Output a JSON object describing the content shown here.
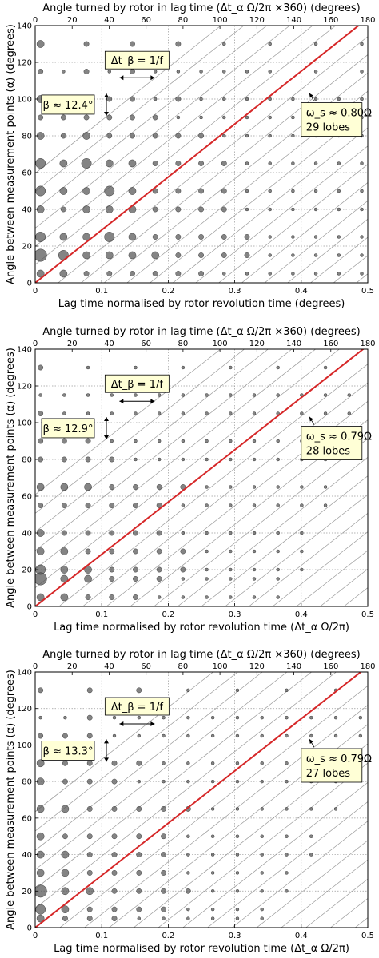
{
  "style": {
    "fit_line_color": "#d62728",
    "diagonal_color": "#9a9a9a",
    "marker_color": "#555555",
    "annotation_fill": "#ffffd6"
  },
  "chart_data": [
    {
      "type": "scatter",
      "top_xlabel": "Angle turned by rotor in lag time (Δt_α Ω/2π ×360) (degrees)",
      "xlabel": "Lag time normalised by rotor revolution time (degrees)",
      "ylabel": "Angle between measurement points (α) (degrees)",
      "xlim": [
        0,
        0.5
      ],
      "ylim": [
        0,
        140
      ],
      "top_xlim": [
        0,
        180
      ],
      "x_ticks": [
        0,
        0.1,
        0.2,
        0.3,
        0.4,
        0.5
      ],
      "y_ticks": [
        0,
        20,
        40,
        60,
        80,
        100,
        120,
        140
      ],
      "top_ticks": [
        0,
        20,
        40,
        60,
        80,
        100,
        120,
        140,
        160,
        180
      ],
      "grid": true,
      "fit_line": {
        "x": [
          0,
          0.5
        ],
        "y": [
          0,
          144
        ]
      },
      "diagonal_spacing_x": 0.0345,
      "annotations": {
        "beta": "β ≈ 12.4°",
        "delta": "Δt_β = 1/f",
        "omega": "ω_s ≈ 0.80Ω",
        "lobes": "29 lobes"
      },
      "dot_rows": [
        {
          "y": 130,
          "sizes": [
            3,
            0,
            2,
            0,
            2,
            0,
            2,
            0,
            1,
            0,
            1,
            0,
            1,
            0,
            1,
            0,
            1,
            1,
            1,
            0,
            1
          ]
        },
        {
          "y": 115,
          "sizes": [
            2,
            1,
            2,
            1,
            2,
            1,
            1,
            1,
            1,
            1,
            1,
            0,
            1,
            0,
            1,
            1,
            1,
            1,
            1
          ]
        },
        {
          "y": 100,
          "sizes": [
            3,
            2,
            2,
            2,
            2,
            1,
            2,
            1,
            1,
            1,
            1,
            1,
            1,
            1,
            1,
            1,
            1,
            1
          ]
        },
        {
          "y": 90,
          "sizes": [
            2,
            2,
            2,
            2,
            2,
            2,
            1,
            1,
            1,
            1,
            1,
            1,
            1,
            1,
            1,
            1,
            1,
            1
          ]
        },
        {
          "y": 80,
          "sizes": [
            3,
            2,
            3,
            2,
            2,
            2,
            2,
            2,
            1,
            1,
            1,
            1,
            1,
            1,
            1,
            1,
            1
          ]
        },
        {
          "y": 65,
          "sizes": [
            4,
            3,
            4,
            3,
            3,
            2,
            2,
            2,
            2,
            1,
            1,
            1,
            1,
            1,
            1,
            1,
            1
          ]
        },
        {
          "y": 50,
          "sizes": [
            4,
            3,
            3,
            4,
            3,
            2,
            2,
            2,
            2,
            1,
            1,
            1,
            1,
            1,
            1,
            1
          ]
        },
        {
          "y": 40,
          "sizes": [
            3,
            2,
            3,
            3,
            3,
            2,
            2,
            2,
            2,
            1,
            1,
            1,
            1,
            1,
            1,
            1
          ]
        },
        {
          "y": 25,
          "sizes": [
            4,
            3,
            3,
            4,
            3,
            2,
            2,
            2,
            2,
            2,
            1,
            1,
            1,
            1,
            1,
            1
          ]
        },
        {
          "y": 15,
          "sizes": [
            5,
            4,
            3,
            3,
            3,
            3,
            2,
            2,
            2,
            2,
            1,
            1,
            1,
            1,
            1,
            1
          ]
        },
        {
          "y": 5,
          "sizes": [
            3,
            3,
            2,
            2,
            2,
            2,
            2,
            2,
            1,
            1,
            1,
            1,
            1,
            1,
            1,
            1
          ]
        }
      ]
    },
    {
      "type": "scatter",
      "top_xlabel": "Angle turned by rotor in lag time (Δt_α Ω/2π ×360) (degrees)",
      "xlabel": "Lag time normalised by rotor revolution time (Δt_α Ω/2π)",
      "ylabel": "Angle between measurement points (α) (degrees)",
      "xlim": [
        0,
        0.5
      ],
      "ylim": [
        0,
        140
      ],
      "top_xlim": [
        0,
        180
      ],
      "x_ticks": [
        0,
        0.1,
        0.2,
        0.3,
        0.4,
        0.5
      ],
      "y_ticks": [
        0,
        20,
        40,
        60,
        80,
        100,
        120,
        140
      ],
      "top_ticks": [
        0,
        20,
        40,
        60,
        80,
        100,
        120,
        140,
        160,
        180
      ],
      "grid": true,
      "fit_line": {
        "x": [
          0,
          0.5
        ],
        "y": [
          0,
          142
        ]
      },
      "diagonal_spacing_x": 0.0357,
      "annotations": {
        "beta": "β ≈ 12.9°",
        "delta": "Δt_β = 1/f",
        "omega": "ω_s ≈ 0.79Ω",
        "lobes": "28 lobes"
      },
      "dot_rows": [
        {
          "y": 130,
          "sizes": [
            2,
            0,
            1,
            0,
            1,
            0,
            1,
            0,
            1,
            0,
            1,
            0,
            1,
            0,
            1,
            0,
            1
          ]
        },
        {
          "y": 115,
          "sizes": [
            1,
            1,
            1,
            1,
            1,
            1,
            1,
            1,
            1,
            1,
            1,
            1,
            1,
            1,
            1
          ]
        },
        {
          "y": 105,
          "sizes": [
            2,
            1,
            1,
            1,
            1,
            1,
            1,
            1,
            1,
            1,
            1,
            1,
            1,
            1
          ]
        },
        {
          "y": 90,
          "sizes": [
            2,
            2,
            2,
            1,
            1,
            1,
            1,
            1,
            1,
            1,
            1,
            1,
            1,
            1
          ]
        },
        {
          "y": 80,
          "sizes": [
            2,
            2,
            2,
            2,
            1,
            1,
            1,
            1,
            1,
            1,
            1,
            1,
            1
          ]
        },
        {
          "y": 65,
          "sizes": [
            3,
            3,
            3,
            2,
            2,
            2,
            2,
            1,
            1,
            1,
            1,
            1,
            1
          ]
        },
        {
          "y": 55,
          "sizes": [
            2,
            2,
            2,
            2,
            2,
            2,
            1,
            1,
            1,
            1,
            1,
            1,
            1
          ]
        },
        {
          "y": 40,
          "sizes": [
            3,
            2,
            2,
            2,
            2,
            2,
            1,
            1,
            1,
            1,
            1,
            1
          ]
        },
        {
          "y": 30,
          "sizes": [
            3,
            3,
            2,
            2,
            2,
            2,
            2,
            1,
            1,
            1,
            1,
            1
          ]
        },
        {
          "y": 20,
          "sizes": [
            4,
            3,
            3,
            2,
            2,
            2,
            2,
            1,
            1,
            1,
            1,
            1
          ]
        },
        {
          "y": 15,
          "sizes": [
            5,
            3,
            3,
            2,
            2,
            2,
            1,
            1,
            1,
            1,
            1
          ]
        },
        {
          "y": 5,
          "sizes": [
            3,
            3,
            2,
            2,
            2,
            1,
            1,
            1,
            1,
            1,
            1
          ]
        }
      ]
    },
    {
      "type": "scatter",
      "top_xlabel": "Angle turned by rotor in lag time (Δt_α Ω/2π ×360) (degrees)",
      "xlabel": "Lag time normalised by rotor revolution time (Δt_α Ω/2π)",
      "ylabel": "Angle between measurement points (α) (degrees)",
      "xlim": [
        0,
        0.5
      ],
      "ylim": [
        0,
        140
      ],
      "top_xlim": [
        0,
        180
      ],
      "x_ticks": [
        0,
        0.1,
        0.2,
        0.3,
        0.4,
        0.5
      ],
      "y_ticks": [
        0,
        20,
        40,
        60,
        80,
        100,
        120,
        140
      ],
      "top_ticks": [
        0,
        20,
        40,
        60,
        80,
        100,
        120,
        140,
        160,
        180
      ],
      "grid": true,
      "fit_line": {
        "x": [
          0,
          0.5
        ],
        "y": [
          0,
          143
        ]
      },
      "diagonal_spacing_x": 0.037,
      "annotations": {
        "beta": "β ≈ 13.3°",
        "delta": "Δt_β = 1/f",
        "omega": "ω_s ≈ 0.79Ω",
        "lobes": "27 lobes"
      },
      "dot_rows": [
        {
          "y": 130,
          "sizes": [
            2,
            0,
            2,
            0,
            2,
            0,
            1,
            0,
            1,
            0,
            1,
            0,
            1,
            0,
            1,
            0,
            1
          ]
        },
        {
          "y": 115,
          "sizes": [
            1,
            1,
            2,
            1,
            1,
            1,
            1,
            1,
            1,
            1,
            1,
            1,
            1,
            1,
            1
          ]
        },
        {
          "y": 105,
          "sizes": [
            2,
            2,
            2,
            1,
            1,
            1,
            1,
            1,
            1,
            1,
            1,
            1,
            1,
            1
          ]
        },
        {
          "y": 90,
          "sizes": [
            3,
            2,
            2,
            2,
            2,
            1,
            1,
            1,
            1,
            1,
            1,
            1,
            1,
            1
          ]
        },
        {
          "y": 80,
          "sizes": [
            3,
            2,
            2,
            2,
            1,
            1,
            1,
            1,
            1,
            1,
            1,
            1,
            1
          ]
        },
        {
          "y": 65,
          "sizes": [
            3,
            3,
            2,
            2,
            2,
            2,
            2,
            1,
            1,
            1,
            1,
            1,
            1
          ]
        },
        {
          "y": 50,
          "sizes": [
            3,
            2,
            2,
            2,
            2,
            2,
            1,
            1,
            1,
            1,
            1,
            1
          ]
        },
        {
          "y": 40,
          "sizes": [
            3,
            3,
            2,
            2,
            2,
            2,
            1,
            1,
            1,
            1,
            1,
            1
          ]
        },
        {
          "y": 30,
          "sizes": [
            3,
            3,
            2,
            2,
            2,
            2,
            1,
            1,
            1,
            1,
            1
          ]
        },
        {
          "y": 20,
          "sizes": [
            5,
            3,
            3,
            2,
            2,
            2,
            2,
            1,
            1,
            1,
            1
          ]
        },
        {
          "y": 10,
          "sizes": [
            4,
            3,
            2,
            2,
            2,
            2,
            1,
            1,
            1,
            1
          ]
        },
        {
          "y": 5,
          "sizes": [
            3,
            2,
            2,
            2,
            1,
            1,
            1,
            1,
            1,
            1
          ]
        }
      ]
    }
  ]
}
